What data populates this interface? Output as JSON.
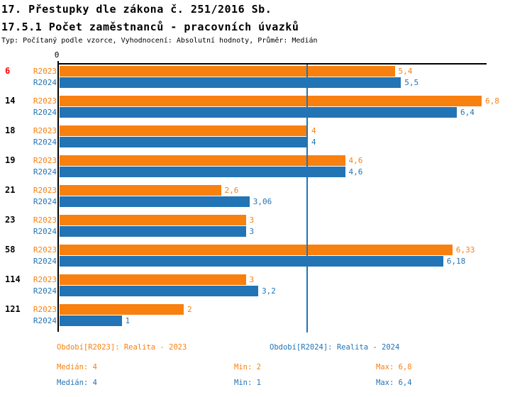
{
  "page": {
    "title_line1": "17. Přestupky dle zákona č. 251/2016 Sb.",
    "title_line2": "17.5.1 Počet zaměstnanců - pracovních úvazků",
    "subtitle": "Typ: Počítaný podle vzorce, Vyhodnocení: Absolutní hodnoty, Průměr: Medián"
  },
  "colors": {
    "series_2023": "#F8800F",
    "series_2024": "#2274B5",
    "highlighted_category": "#FF0000",
    "category_default": "#000000",
    "axis": "#000000",
    "median_line": "#2274B5"
  },
  "axis": {
    "zero_label": "0"
  },
  "chart_data": {
    "type": "bar",
    "orientation": "horizontal",
    "title": "17.5.1 Počet zaměstnanců - pracovních úvazků",
    "categories": [
      "6",
      "14",
      "18",
      "19",
      "21",
      "23",
      "58",
      "114",
      "121"
    ],
    "highlighted_categories": [
      "6"
    ],
    "series": [
      {
        "name": "R2023",
        "color": "#F8800F",
        "values": [
          5.4,
          6.8,
          4,
          4.6,
          2.6,
          3,
          6.33,
          3,
          2
        ],
        "labels": [
          "5,4",
          "6,8",
          "4",
          "4,6",
          "2,6",
          "3",
          "6,33",
          "3",
          "2"
        ]
      },
      {
        "name": "R2024",
        "color": "#2274B5",
        "values": [
          5.5,
          6.4,
          4,
          4.6,
          3.06,
          3,
          6.18,
          3.2,
          1
        ],
        "labels": [
          "5,5",
          "6,4",
          "4",
          "4,6",
          "3,06",
          "3",
          "6,18",
          "3,2",
          "1"
        ]
      }
    ],
    "xlim": [
      0,
      6.9
    ],
    "median_line_value": 4,
    "legend_position": "bottom",
    "grid": false
  },
  "legend": {
    "period_2023": "Období[R2023]: Realita - 2023",
    "period_2024": "Období[R2024]: Realita - 2024",
    "stats_2023": {
      "median": "Medián: 4",
      "min": "Min: 2",
      "max": "Max: 6,8"
    },
    "stats_2024": {
      "median": "Medián: 4",
      "min": "Min: 1",
      "max": "Max: 6,4"
    }
  }
}
